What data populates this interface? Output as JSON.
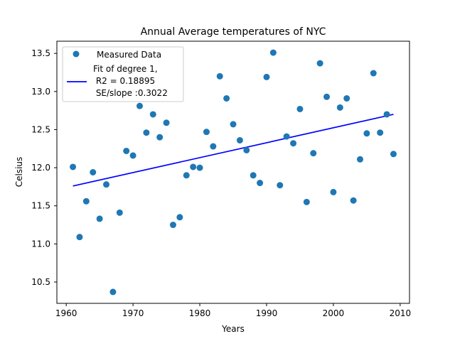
{
  "chart_data": {
    "type": "scatter",
    "title": "Annual Average temperatures of NYC",
    "xlabel": "Years",
    "ylabel": "Celsius",
    "xlim": [
      1958.6,
      2011.4
    ],
    "ylim": [
      10.22,
      13.66
    ],
    "xticks": [
      1960,
      1970,
      1980,
      1990,
      2000,
      2010
    ],
    "xtick_labels": [
      "1960",
      "1970",
      "1980",
      "1990",
      "2000",
      "2010"
    ],
    "yticks": [
      10.5,
      11.0,
      11.5,
      12.0,
      12.5,
      13.0,
      13.5
    ],
    "ytick_labels": [
      "10.5",
      "11.0",
      "11.5",
      "12.0",
      "12.5",
      "13.0",
      "13.5"
    ],
    "grid": false,
    "legend": {
      "position": "top-left",
      "entries": [
        {
          "label_lines": [
            "Measured Data"
          ]
        },
        {
          "label_lines": [
            "Fit of degree 1,",
            " R2 = 0.18895",
            " SE/slope :0.3022"
          ]
        }
      ]
    },
    "series": [
      {
        "name": "Measured Data",
        "kind": "scatter",
        "color": "#1f77b4",
        "x": [
          1961,
          1962,
          1963,
          1964,
          1965,
          1966,
          1967,
          1968,
          1969,
          1970,
          1971,
          1972,
          1973,
          1974,
          1975,
          1976,
          1977,
          1978,
          1979,
          1980,
          1981,
          1982,
          1983,
          1984,
          1985,
          1986,
          1987,
          1988,
          1989,
          1990,
          1991,
          1992,
          1993,
          1994,
          1995,
          1996,
          1997,
          1998,
          1999,
          2000,
          2001,
          2002,
          2003,
          2004,
          2005,
          2006,
          2007,
          2008,
          2009
        ],
        "y": [
          12.01,
          11.09,
          11.56,
          11.94,
          11.33,
          11.78,
          10.37,
          11.41,
          12.22,
          12.16,
          12.81,
          12.46,
          12.7,
          12.4,
          12.59,
          11.25,
          11.35,
          11.9,
          12.01,
          12.0,
          12.47,
          12.28,
          13.2,
          12.91,
          12.57,
          12.36,
          12.23,
          11.9,
          11.8,
          13.19,
          13.51,
          11.77,
          12.41,
          12.32,
          12.77,
          11.55,
          12.19,
          13.37,
          12.93,
          11.68,
          12.79,
          12.91,
          11.57,
          12.11,
          12.45,
          13.24,
          12.46,
          12.7,
          12.18
        ]
      },
      {
        "name": "Fit of degree 1,\n R2 = 0.18895\n SE/slope :0.3022",
        "kind": "line",
        "color": "#0000ff",
        "x": [
          1961,
          2009
        ],
        "y": [
          11.76,
          12.7
        ]
      }
    ]
  }
}
